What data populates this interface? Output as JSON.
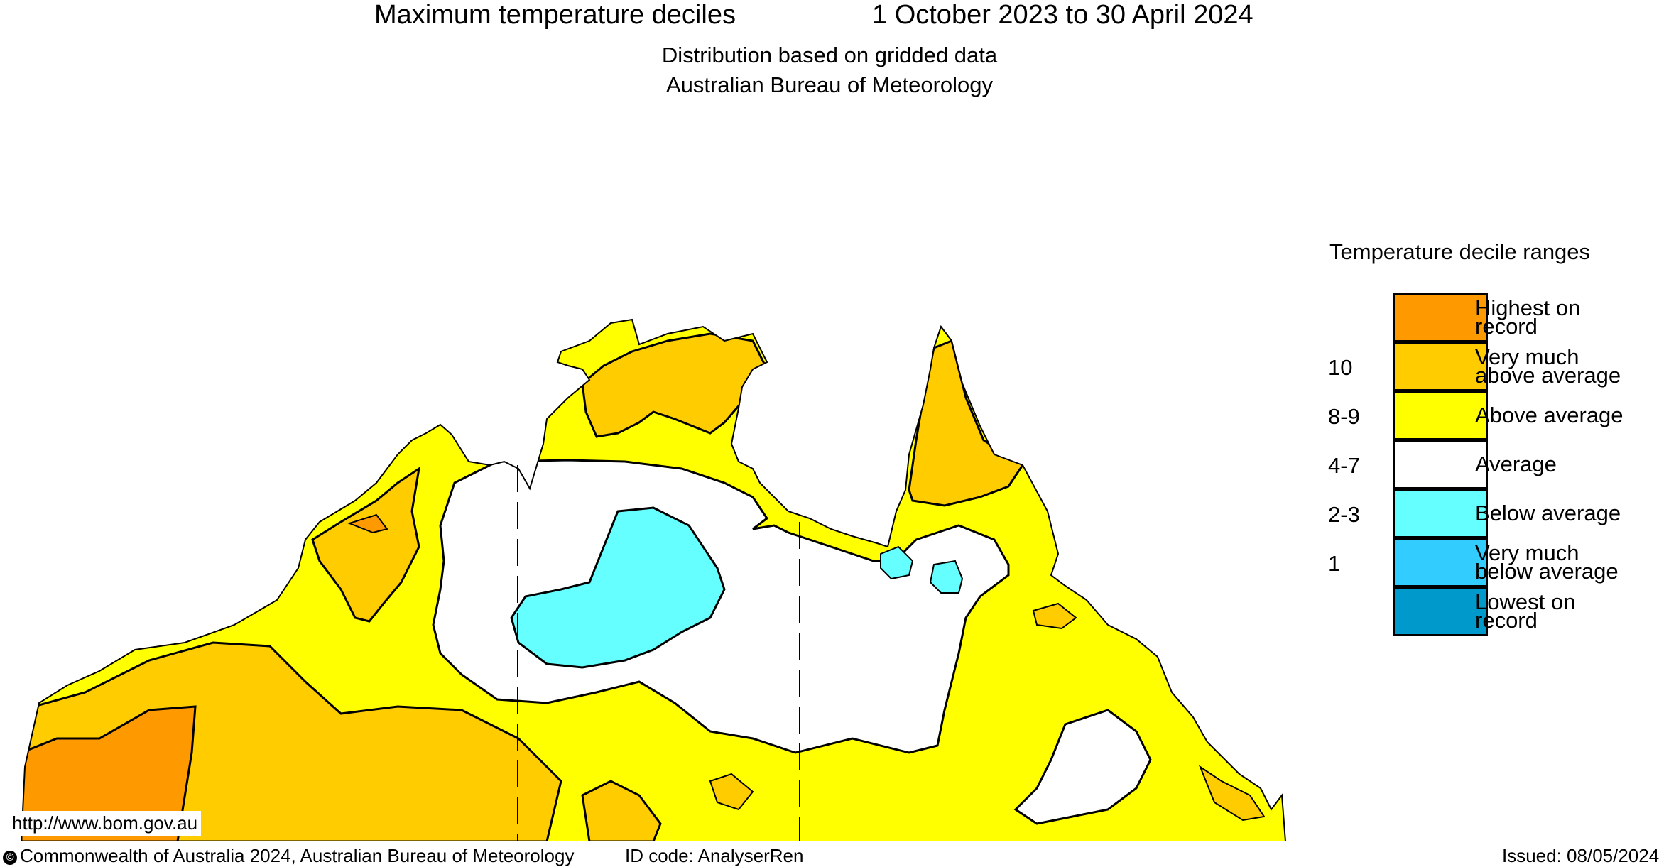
{
  "header": {
    "title": "Maximum temperature deciles",
    "period": "1 October 2023 to 30 April 2024",
    "subtitle1": "Distribution based on gridded data",
    "subtitle2": "Australian Bureau of Meteorology"
  },
  "legend": {
    "title": "Temperature decile ranges",
    "items": [
      {
        "label1": "Highest on",
        "label2": "record",
        "color": "#ff9900",
        "decile": ""
      },
      {
        "label1": "Very much",
        "label2": "above average",
        "color": "#ffcc00",
        "decile": "10"
      },
      {
        "label1": "Above average",
        "label2": "",
        "color": "#ffff00",
        "decile": "8-9"
      },
      {
        "label1": "Average",
        "label2": "",
        "color": "#ffffff",
        "decile": "4-7"
      },
      {
        "label1": "Below average",
        "label2": "",
        "color": "#66ffff",
        "decile": "2-3"
      },
      {
        "label1": "Very much",
        "label2": "below average",
        "color": "#33ccff",
        "decile": "1"
      },
      {
        "label1": "Lowest on",
        "label2": "record",
        "color": "#0099cc",
        "decile": ""
      }
    ]
  },
  "url": "http://www.bom.gov.au",
  "footer": {
    "copyright": "Commonwealth of Australia 2024, Australian Bureau of Meteorology",
    "id_code": "ID code: AnalyserRen",
    "issued": "Issued: 08/05/2024"
  }
}
